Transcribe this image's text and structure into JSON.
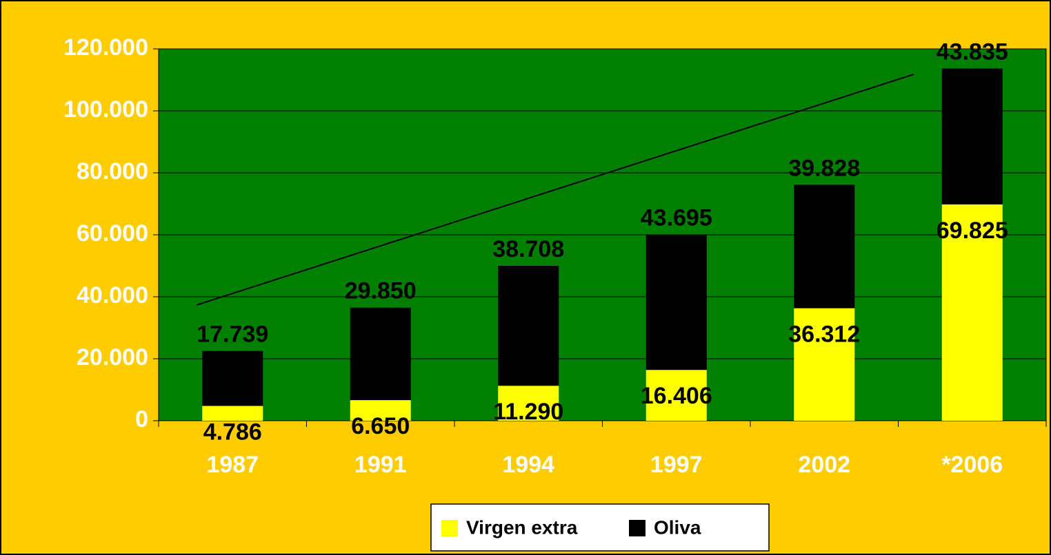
{
  "chart_data": {
    "type": "stacked_bar",
    "categories": [
      "1987",
      "1991",
      "1994",
      "1997",
      "2002",
      "*2006"
    ],
    "series": [
      {
        "name": "Virgen extra",
        "color": "#FFFF00",
        "values": [
          4786,
          6650,
          11290,
          16406,
          36312,
          69825
        ],
        "value_labels": [
          "4.786",
          "6.650",
          "11.290",
          "16.406",
          "36.312",
          "69.825"
        ]
      },
      {
        "name": "Oliva",
        "color": "#000000",
        "values": [
          17739,
          29850,
          38708,
          43695,
          39828,
          43835
        ],
        "value_labels": [
          "17.739",
          "29.850",
          "38.708",
          "43.695",
          "39.828",
          "43.835"
        ]
      }
    ],
    "ylim": [
      0,
      120000
    ],
    "yticks": [
      0,
      {
        "value": 20000,
        "label": "20.000"
      },
      {
        "value": 40000,
        "label": "40.000"
      },
      {
        "value": 60000,
        "label": "60.000"
      },
      {
        "value": 80000,
        "label": "80.000"
      },
      {
        "value": 100000,
        "label": "100.000"
      },
      {
        "value": 120000,
        "label": "120.000"
      }
    ],
    "grid": true,
    "legend": "bottom"
  }
}
